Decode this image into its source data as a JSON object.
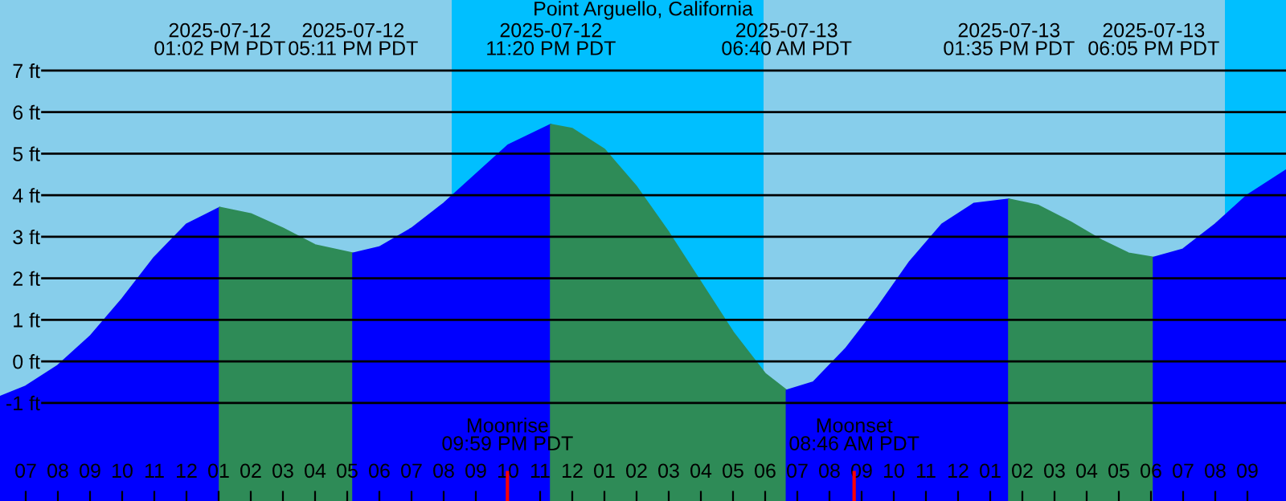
{
  "chart_data": {
    "type": "area",
    "title": "Point Arguello, California",
    "xlim": [
      "2025-07-12T06:12",
      "2025-07-13T22:12"
    ],
    "ylim": [
      -3.36,
      8.7
    ],
    "xticks": [
      {
        "value": "2025-07-12T07:00",
        "label": "07"
      },
      {
        "value": "2025-07-12T08:00",
        "label": "08"
      },
      {
        "value": "2025-07-12T09:00",
        "label": "09"
      },
      {
        "value": "2025-07-12T10:00",
        "label": "10"
      },
      {
        "value": "2025-07-12T11:00",
        "label": "11"
      },
      {
        "value": "2025-07-12T12:00",
        "label": "12"
      },
      {
        "value": "2025-07-12T13:00",
        "label": "01"
      },
      {
        "value": "2025-07-12T14:00",
        "label": "02"
      },
      {
        "value": "2025-07-12T15:00",
        "label": "03"
      },
      {
        "value": "2025-07-12T16:00",
        "label": "04"
      },
      {
        "value": "2025-07-12T17:00",
        "label": "05"
      },
      {
        "value": "2025-07-12T18:00",
        "label": "06"
      },
      {
        "value": "2025-07-12T19:00",
        "label": "07"
      },
      {
        "value": "2025-07-12T20:00",
        "label": "08"
      },
      {
        "value": "2025-07-12T21:00",
        "label": "09"
      },
      {
        "value": "2025-07-12T22:00",
        "label": "10"
      },
      {
        "value": "2025-07-12T23:00",
        "label": "11"
      },
      {
        "value": "2025-07-13T00:00",
        "label": "12"
      },
      {
        "value": "2025-07-13T01:00",
        "label": "01"
      },
      {
        "value": "2025-07-13T02:00",
        "label": "02"
      },
      {
        "value": "2025-07-13T03:00",
        "label": "03"
      },
      {
        "value": "2025-07-13T04:00",
        "label": "04"
      },
      {
        "value": "2025-07-13T05:00",
        "label": "05"
      },
      {
        "value": "2025-07-13T06:00",
        "label": "06"
      },
      {
        "value": "2025-07-13T07:00",
        "label": "07"
      },
      {
        "value": "2025-07-13T08:00",
        "label": "08"
      },
      {
        "value": "2025-07-13T09:00",
        "label": "09"
      },
      {
        "value": "2025-07-13T10:00",
        "label": "10"
      },
      {
        "value": "2025-07-13T11:00",
        "label": "11"
      },
      {
        "value": "2025-07-13T12:00",
        "label": "12"
      },
      {
        "value": "2025-07-13T13:00",
        "label": "01"
      },
      {
        "value": "2025-07-13T14:00",
        "label": "02"
      },
      {
        "value": "2025-07-13T15:00",
        "label": "03"
      },
      {
        "value": "2025-07-13T16:00",
        "label": "04"
      },
      {
        "value": "2025-07-13T17:00",
        "label": "05"
      },
      {
        "value": "2025-07-13T18:00",
        "label": "06"
      },
      {
        "value": "2025-07-13T19:00",
        "label": "07"
      },
      {
        "value": "2025-07-13T20:00",
        "label": "08"
      },
      {
        "value": "2025-07-13T21:00",
        "label": "09"
      }
    ],
    "yticks": [
      {
        "value": -1,
        "label": "-1 ft"
      },
      {
        "value": 0,
        "label": "0 ft"
      },
      {
        "value": 1,
        "label": "1 ft"
      },
      {
        "value": 2,
        "label": "2 ft"
      },
      {
        "value": 3,
        "label": "3 ft"
      },
      {
        "value": 4,
        "label": "4 ft"
      },
      {
        "value": 5,
        "label": "5 ft"
      },
      {
        "value": 6,
        "label": "6 ft"
      },
      {
        "value": 7,
        "label": "7 ft"
      }
    ],
    "grid": "y",
    "bands": [
      {
        "axis": "x",
        "from": "2025-07-12T20:15",
        "to": "2025-07-13T05:57",
        "color": "#00bfff"
      },
      {
        "axis": "x",
        "from": "2025-07-13T20:18",
        "to": "2025-07-13T22:12",
        "color": "#00bfff"
      }
    ],
    "ref_lines": [
      {
        "axis": "x",
        "value": "2025-07-12T21:59",
        "label": "Moonrise\n09:59 PM PDT",
        "color": "#ff0000"
      },
      {
        "axis": "x",
        "value": "2025-07-13T08:46",
        "label": "Moonset\n08:46 AM PDT",
        "color": "#ff0000"
      }
    ],
    "series": [
      {
        "color": "#0000ff",
        "x": [
          "2025-07-12T06:12",
          "2025-07-12T07:00",
          "2025-07-12T08:00",
          "2025-07-12T09:00",
          "2025-07-12T10:00",
          "2025-07-12T11:00",
          "2025-07-12T12:00",
          "2025-07-12T13:02"
        ],
        "values": [
          -0.85,
          -0.6,
          -0.1,
          0.6,
          1.5,
          2.5,
          3.3,
          3.7
        ]
      },
      {
        "color": "#2e8b57",
        "x": [
          "2025-07-12T13:02",
          "2025-07-12T14:00",
          "2025-07-12T15:00",
          "2025-07-12T16:00",
          "2025-07-12T17:11"
        ],
        "values": [
          3.7,
          3.55,
          3.2,
          2.8,
          2.6
        ]
      },
      {
        "color": "#0000ff",
        "x": [
          "2025-07-12T17:11",
          "2025-07-12T18:00",
          "2025-07-12T19:00",
          "2025-07-12T20:00",
          "2025-07-12T21:00",
          "2025-07-12T22:00",
          "2025-07-12T23:20"
        ],
        "values": [
          2.6,
          2.75,
          3.2,
          3.8,
          4.5,
          5.2,
          5.7
        ]
      },
      {
        "color": "#2e8b57",
        "x": [
          "2025-07-12T23:20",
          "2025-07-13T00:00",
          "2025-07-13T01:00",
          "2025-07-13T02:00",
          "2025-07-13T03:00",
          "2025-07-13T04:00",
          "2025-07-13T05:00",
          "2025-07-13T06:00",
          "2025-07-13T06:40"
        ],
        "values": [
          5.7,
          5.6,
          5.1,
          4.2,
          3.1,
          1.9,
          0.7,
          -0.3,
          -0.7
        ]
      },
      {
        "color": "#0000ff",
        "x": [
          "2025-07-13T06:40",
          "2025-07-13T07:30",
          "2025-07-13T08:30",
          "2025-07-13T09:30",
          "2025-07-13T10:30",
          "2025-07-13T11:30",
          "2025-07-13T12:30",
          "2025-07-13T13:35"
        ],
        "values": [
          -0.7,
          -0.5,
          0.3,
          1.3,
          2.4,
          3.3,
          3.8,
          3.9
        ]
      },
      {
        "color": "#2e8b57",
        "x": [
          "2025-07-13T13:35",
          "2025-07-13T14:30",
          "2025-07-13T15:30",
          "2025-07-13T16:30",
          "2025-07-13T17:18",
          "2025-07-13T18:05"
        ],
        "values": [
          3.9,
          3.75,
          3.35,
          2.9,
          2.6,
          2.5
        ]
      },
      {
        "color": "#0000ff",
        "x": [
          "2025-07-13T18:05",
          "2025-07-13T19:00",
          "2025-07-13T20:00",
          "2025-07-13T21:00",
          "2025-07-13T22:12"
        ],
        "values": [
          2.5,
          2.7,
          3.3,
          4.0,
          4.6
        ]
      }
    ],
    "annotations": [
      "2025-07-12\n01:02 PM PDT",
      "2025-07-12\n05:11 PM PDT",
      "2025-07-12\n11:20 PM PDT",
      "2025-07-13\n06:40 AM PDT",
      "2025-07-13\n01:35 PM PDT",
      "2025-07-13\n06:05 PM PDT"
    ]
  }
}
